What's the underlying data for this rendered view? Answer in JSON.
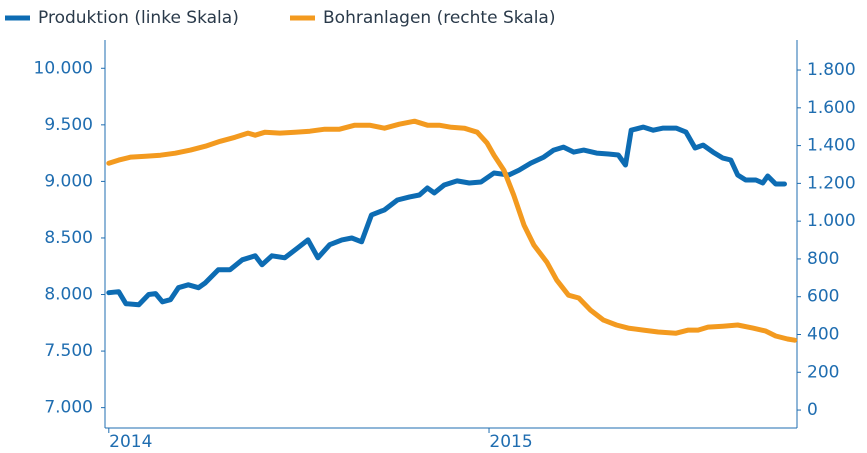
{
  "chart_data": {
    "type": "line",
    "xlim": [
      2013.99,
      2015.81
    ],
    "xticks": [
      2014,
      2015
    ],
    "ylim": [
      6820,
      10250
    ],
    "yticks": [
      {
        "value": 7000,
        "label": "7.000"
      },
      {
        "value": 7500,
        "label": "7.500"
      },
      {
        "value": 8000,
        "label": "8.000"
      },
      {
        "value": 8500,
        "label": "8.500"
      },
      {
        "value": 9000,
        "label": "9.000"
      },
      {
        "value": 9500,
        "label": "9.500"
      },
      {
        "value": 10000,
        "label": "10.000"
      }
    ],
    "y2lim": [
      -95,
      1959
    ],
    "y2ticks": [
      0,
      200,
      400,
      600,
      800,
      {
        "value": 1000,
        "label": "1.000"
      },
      {
        "value": 1200,
        "label": "1.200"
      },
      {
        "value": 1400,
        "label": "1.400"
      },
      {
        "value": 1600,
        "label": "1.600"
      },
      {
        "value": 1800,
        "label": "1.800"
      }
    ],
    "series": [
      {
        "name": "Produktion (linke Skala)",
        "color": "#0d6cb3",
        "x": [
          2014,
          2014.026,
          2014.045,
          2014.079,
          2014.105,
          2014.123,
          2014.141,
          2014.162,
          2014.183,
          2014.209,
          2014.236,
          2014.254,
          2014.288,
          2014.319,
          2014.351,
          2014.385,
          2014.403,
          2014.429,
          2014.463,
          2014.497,
          2014.524,
          2014.55,
          2014.581,
          2014.613,
          2014.639,
          2014.665,
          2014.691,
          2014.725,
          2014.759,
          2014.791,
          2014.817,
          2014.838,
          2014.856,
          2014.882,
          2014.916,
          2014.948,
          2014.979,
          2015.013,
          2015.052,
          2015.079,
          2015.11,
          2015.144,
          2015.17,
          2015.196,
          2015.223,
          2015.249,
          2015.283,
          2015.314,
          2015.34,
          2015.359,
          2015.374,
          2015.406,
          2015.432,
          2015.458,
          2015.492,
          2015.518,
          2015.542,
          2015.563,
          2015.589,
          2015.615,
          2015.636,
          2015.654,
          2015.675,
          2015.702,
          2015.72,
          2015.733,
          2015.754,
          2015.777
        ],
        "values": [
          8016,
          8025,
          7919,
          7910,
          8000,
          8008,
          7936,
          7954,
          8060,
          8086,
          8060,
          8104,
          8219,
          8219,
          8307,
          8342,
          8263,
          8342,
          8325,
          8413,
          8483,
          8325,
          8440,
          8483,
          8500,
          8466,
          8704,
          8748,
          8836,
          8863,
          8880,
          8942,
          8898,
          8968,
          9004,
          8986,
          8995,
          9074,
          9057,
          9100,
          9162,
          9215,
          9277,
          9303,
          9259,
          9277,
          9250,
          9242,
          9233,
          9145,
          9453,
          9480,
          9453,
          9471,
          9471,
          9436,
          9295,
          9321,
          9259,
          9206,
          9189,
          9057,
          9012,
          9012,
          8986,
          9048,
          8977,
          8977
        ]
      },
      {
        "name": "Bohranlagen (rechte Skala)",
        "color": "#f39a1f",
        "axis": "y2",
        "x": [
          2014,
          2014.026,
          2014.058,
          2014.097,
          2014.136,
          2014.175,
          2014.215,
          2014.254,
          2014.293,
          2014.332,
          2014.366,
          2014.385,
          2014.411,
          2014.45,
          2014.49,
          2014.529,
          2014.568,
          2014.607,
          2014.647,
          2014.686,
          2014.725,
          2014.764,
          2014.804,
          2014.838,
          2014.869,
          2014.901,
          2014.935,
          2014.969,
          2014.995,
          2015.013,
          2015.039,
          2015.065,
          2015.092,
          2015.118,
          2015.152,
          2015.178,
          2015.209,
          2015.236,
          2015.267,
          2015.301,
          2015.335,
          2015.366,
          2015.406,
          2015.445,
          2015.492,
          2015.524,
          2015.55,
          2015.576,
          2015.615,
          2015.654,
          2015.694,
          2015.728,
          2015.754,
          2015.785,
          2015.804
        ],
        "values": [
          1307,
          1323,
          1339,
          1344,
          1349,
          1360,
          1376,
          1397,
          1423,
          1444,
          1466,
          1455,
          1471,
          1466,
          1471,
          1476,
          1487,
          1487,
          1508,
          1508,
          1492,
          1513,
          1529,
          1508,
          1508,
          1497,
          1492,
          1471,
          1413,
          1349,
          1270,
          1138,
          979,
          873,
          783,
          688,
          608,
          593,
          529,
          476,
          450,
          434,
          423,
          413,
          407,
          423,
          423,
          439,
          444,
          450,
          434,
          418,
          392,
          376,
          370
        ]
      }
    ]
  }
}
